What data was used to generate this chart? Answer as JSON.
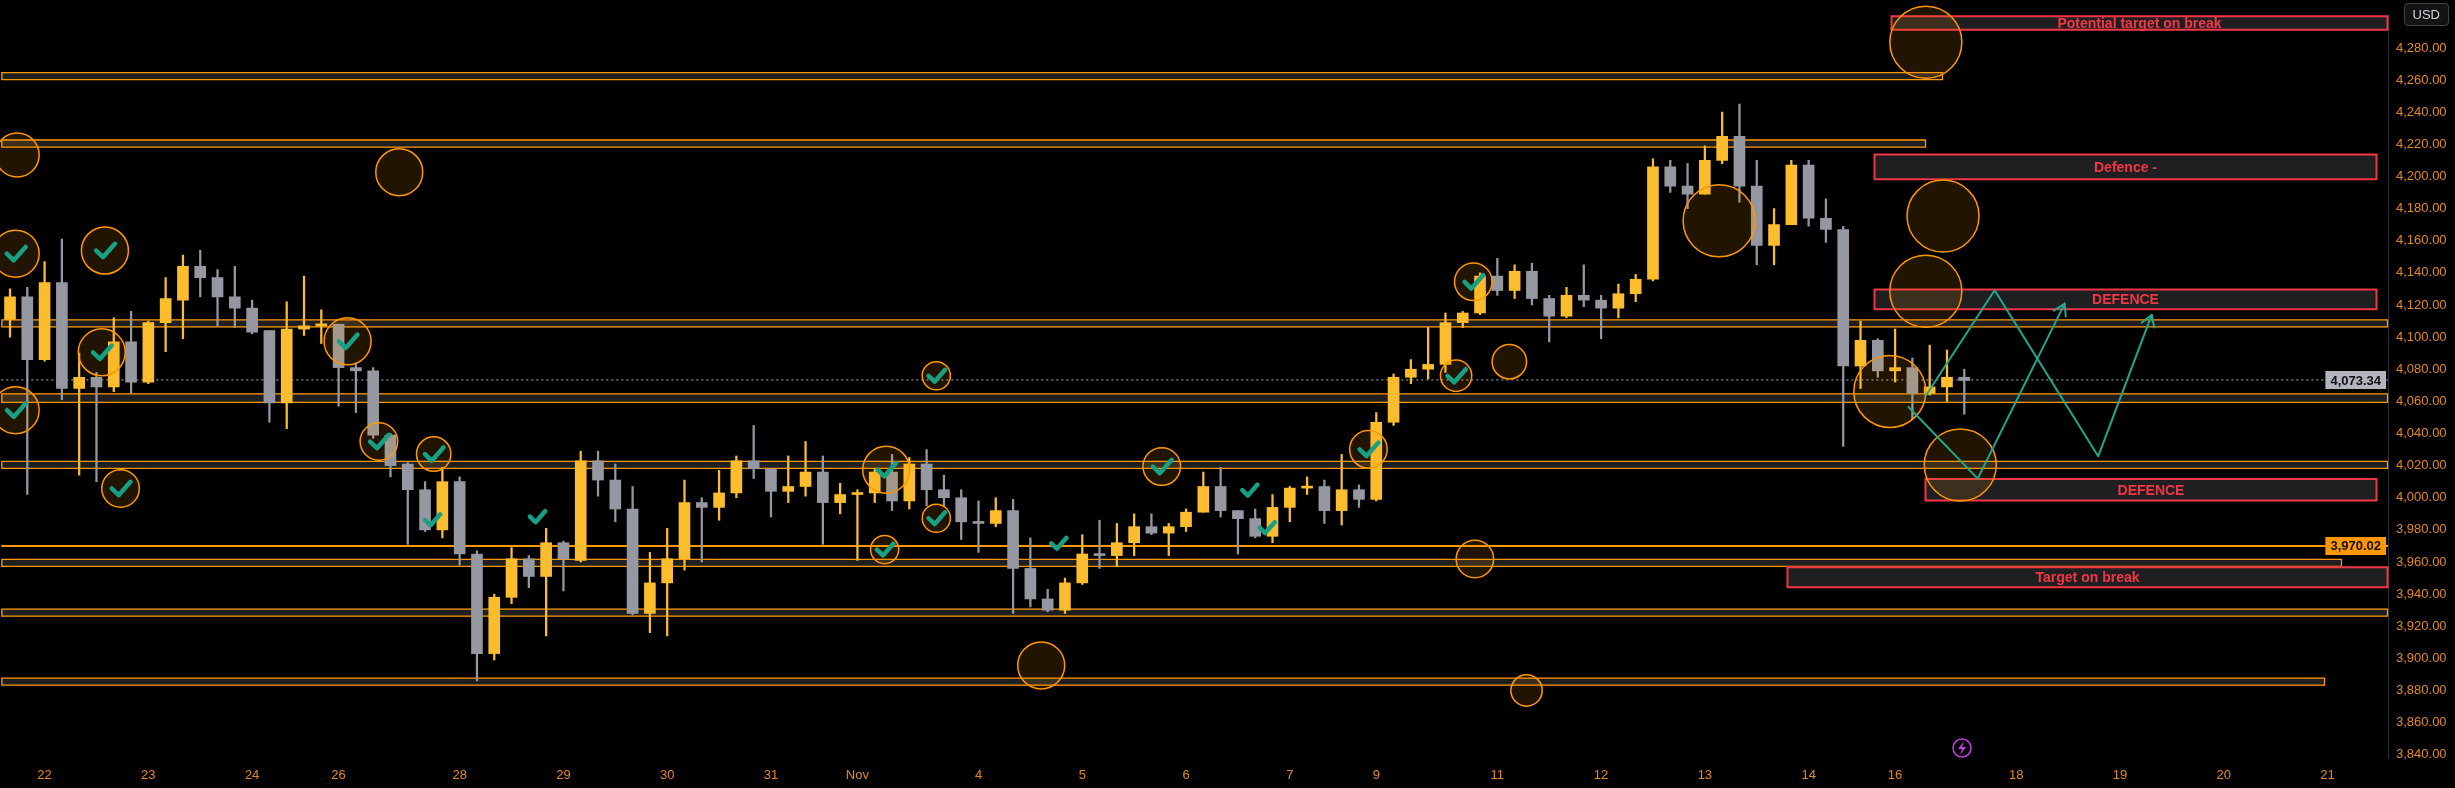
{
  "chart_data": {
    "type": "candlestick",
    "ylabel": "USD",
    "categories": [
      null,
      null,
      "22",
      null,
      null,
      null,
      null,
      null,
      "23",
      null,
      null,
      null,
      null,
      null,
      "24",
      null,
      null,
      null,
      null,
      "26",
      null,
      null,
      null,
      null,
      null,
      null,
      "28",
      null,
      null,
      null,
      null,
      null,
      "29",
      null,
      null,
      null,
      null,
      null,
      "30",
      null,
      null,
      null,
      null,
      null,
      "31",
      null,
      null,
      null,
      null,
      "Nov",
      null,
      null,
      null,
      null,
      null,
      null,
      "4",
      null,
      null,
      null,
      null,
      null,
      "5",
      null,
      null,
      null,
      null,
      null,
      "6",
      null,
      null,
      null,
      null,
      null,
      "7",
      null,
      null,
      null,
      null,
      "9",
      null,
      null,
      null,
      null,
      null,
      null,
      "11",
      null,
      null,
      null,
      null,
      null,
      "12",
      null,
      null,
      null,
      null,
      null,
      "13",
      null,
      null,
      null,
      null,
      null,
      "14",
      null,
      null,
      null,
      null,
      "16",
      null,
      null,
      null,
      null,
      null,
      null,
      "18",
      null,
      null,
      null,
      null,
      null,
      "19",
      null,
      null,
      null,
      null,
      null,
      "20",
      null,
      null,
      null,
      null,
      null,
      "21",
      null,
      null,
      null
    ],
    "ohlc": [
      [
        4111,
        4130,
        4100,
        4125
      ],
      [
        4125,
        4131,
        4002,
        4086
      ],
      [
        4086,
        4147,
        4085,
        4134
      ],
      [
        4134,
        4161,
        4061,
        4068
      ],
      [
        4068,
        4090,
        4014,
        4075
      ],
      [
        4075,
        4078,
        4010,
        4069
      ],
      [
        4069,
        4112,
        4066,
        4097
      ],
      [
        4097,
        4116,
        4065,
        4072
      ],
      [
        4072,
        4110,
        4071,
        4109
      ],
      [
        4109,
        4137,
        4091,
        4124
      ],
      [
        4123,
        4151,
        4099,
        4144
      ],
      [
        4144,
        4154,
        4125,
        4137
      ],
      [
        4137,
        4142,
        4107,
        4125
      ],
      [
        4125,
        4144,
        4106,
        4118
      ],
      [
        4118,
        4123,
        4102,
        4103
      ],
      [
        4104,
        4104,
        4047,
        4059
      ],
      [
        4059,
        4122,
        4043,
        4105
      ],
      [
        4105,
        4138,
        4101,
        4107
      ],
      [
        4107,
        4117,
        4096,
        4108
      ],
      [
        4108,
        4108,
        4057,
        4081
      ],
      [
        4081,
        4083,
        4053,
        4079
      ],
      [
        4079,
        4081,
        4037,
        4039
      ],
      [
        4039,
        4040,
        4013,
        4020
      ],
      [
        4021,
        4022,
        3971,
        4005
      ],
      [
        4005,
        4010,
        3979,
        3980
      ],
      [
        3980,
        4019,
        3975,
        4010
      ],
      [
        4010,
        4013,
        3958,
        3965
      ],
      [
        3965,
        3967,
        3886,
        3903
      ],
      [
        3903,
        3940,
        3899,
        3938
      ],
      [
        3938,
        3969,
        3934,
        3962
      ],
      [
        3962,
        3964,
        3944,
        3951
      ],
      [
        3951,
        3981,
        3914,
        3972
      ],
      [
        3972,
        3973,
        3942,
        3962
      ],
      [
        3961,
        4029,
        3960,
        4023
      ],
      [
        4023,
        4029,
        4001,
        4011
      ],
      [
        4011,
        4021,
        3985,
        3993
      ],
      [
        3993,
        4007,
        3927,
        3928
      ],
      [
        3928,
        3966,
        3916,
        3947
      ],
      [
        3947,
        3981,
        3914,
        3962
      ],
      [
        3962,
        4011,
        3955,
        3997
      ],
      [
        3997,
        4000,
        3960,
        3994
      ],
      [
        3994,
        4017,
        3986,
        4003
      ],
      [
        4003,
        4026,
        4000,
        4023
      ],
      [
        4023,
        4045,
        4012,
        4018
      ],
      [
        4018,
        4018,
        3988,
        4004
      ],
      [
        4004,
        4026,
        3997,
        4007
      ],
      [
        4007,
        4035,
        4001,
        4016
      ],
      [
        4016,
        4026,
        3971,
        3997
      ],
      [
        3997,
        4009,
        3990,
        4002
      ],
      [
        4002,
        4005,
        3961,
        4003
      ],
      [
        4003,
        4018,
        3997,
        4016
      ],
      [
        4016,
        4027,
        3992,
        3998
      ],
      [
        3998,
        4025,
        3993,
        4021
      ],
      [
        4021,
        4030,
        3995,
        4005
      ],
      [
        4005,
        4014,
        3995,
        4000
      ],
      [
        4000,
        4005,
        3974,
        3985
      ],
      [
        3985,
        3998,
        3966,
        3984
      ],
      [
        3984,
        4000,
        3982,
        3992
      ],
      [
        3992,
        3999,
        3928,
        3956
      ],
      [
        3956,
        3975,
        3932,
        3937
      ],
      [
        3937,
        3943,
        3929,
        3930
      ],
      [
        3930,
        3950,
        3928,
        3947
      ],
      [
        3947,
        3977,
        3946,
        3965
      ],
      [
        3965,
        3986,
        3956,
        3964
      ],
      [
        3964,
        3984,
        3957,
        3972
      ],
      [
        3972,
        3990,
        3964,
        3982
      ],
      [
        3982,
        3990,
        3977,
        3978
      ],
      [
        3978,
        3984,
        3964,
        3982
      ],
      [
        3982,
        3993,
        3979,
        3991
      ],
      [
        3991,
        4016,
        3991,
        4007
      ],
      [
        4007,
        4019,
        3988,
        3992
      ],
      [
        3992,
        3992,
        3965,
        3987
      ],
      [
        3987,
        3993,
        3975,
        3976
      ],
      [
        3976,
        4002,
        3972,
        3994
      ],
      [
        3994,
        4007,
        3985,
        4006
      ],
      [
        4006,
        4013,
        4002,
        4007
      ],
      [
        4007,
        4011,
        3984,
        3992
      ],
      [
        3992,
        4027,
        3983,
        4005
      ],
      [
        4005,
        4008,
        3994,
        3999
      ],
      [
        3999,
        4053,
        3998,
        4047
      ],
      [
        4047,
        4077,
        4045,
        4075
      ],
      [
        4075,
        4086,
        4071,
        4080
      ],
      [
        4080,
        4106,
        4074,
        4083
      ],
      [
        4083,
        4115,
        4078,
        4109
      ],
      [
        4109,
        4116,
        4106,
        4115
      ],
      [
        4115,
        4140,
        4114,
        4138
      ],
      [
        4138,
        4149,
        4126,
        4129
      ],
      [
        4129,
        4145,
        4124,
        4141
      ],
      [
        4141,
        4146,
        4120,
        4124
      ],
      [
        4124,
        4126,
        4097,
        4113
      ],
      [
        4113,
        4131,
        4112,
        4126
      ],
      [
        4126,
        4145,
        4119,
        4123
      ],
      [
        4123,
        4126,
        4099,
        4118
      ],
      [
        4118,
        4133,
        4112,
        4127
      ],
      [
        4127,
        4139,
        4122,
        4136
      ],
      [
        4136,
        4211,
        4135,
        4206
      ],
      [
        4206,
        4210,
        4190,
        4194
      ],
      [
        4194,
        4208,
        4180,
        4189
      ],
      [
        4189,
        4219,
        4189,
        4210
      ],
      [
        4210,
        4240,
        4208,
        4225
      ],
      [
        4225,
        4245,
        4184,
        4194
      ],
      [
        4194,
        4210,
        4145,
        4157
      ],
      [
        4157,
        4180,
        4145,
        4170
      ],
      [
        4170,
        4210,
        4170,
        4207
      ],
      [
        4207,
        4210,
        4169,
        4174
      ],
      [
        4174,
        4186,
        4159,
        4167
      ],
      [
        4167,
        4169,
        4032,
        4082
      ],
      [
        4082,
        4110,
        4068,
        4098
      ],
      [
        4098,
        4099,
        4075,
        4079
      ],
      [
        4079,
        4105,
        4072,
        4081
      ],
      [
        4081,
        4087,
        4049,
        4065
      ],
      [
        4065,
        4095,
        4064,
        4069
      ],
      [
        4069,
        4092,
        4060,
        4075
      ],
      [
        4075,
        4080,
        4052,
        4073
      ],
      null,
      null,
      null,
      null,
      null,
      null,
      null,
      null,
      null,
      null,
      null,
      null,
      null,
      null,
      null,
      null,
      null,
      null,
      null,
      null,
      null,
      null,
      null,
      null
    ],
    "colors": [
      "#fbbd2e",
      "#9598a1",
      "#fbbd2e",
      "#9598a1",
      "#fbbd2e",
      "#9598a1",
      "#fbbd2e",
      "#9598a1",
      "#fbbd2e",
      "#fbbd2e",
      "#fbbd2e",
      "#9598a1",
      "#9598a1",
      "#9598a1",
      "#9598a1",
      "#9598a1",
      "#fbbd2e",
      "#fbbd2e",
      "#fbbd2e",
      "#9598a1",
      "#9598a1",
      "#9598a1",
      "#9598a1",
      "#9598a1",
      "#9598a1",
      "#fbbd2e",
      "#9598a1",
      "#9598a1",
      "#fbbd2e",
      "#fbbd2e",
      "#9598a1",
      "#fbbd2e",
      "#9598a1",
      "#fbbd2e",
      "#9598a1",
      "#9598a1",
      "#9598a1",
      "#fbbd2e",
      "#fbbd2e",
      "#fbbd2e",
      "#9598a1",
      "#fbbd2e",
      "#fbbd2e",
      "#9598a1",
      "#9598a1",
      "#fbbd2e",
      "#fbbd2e",
      "#9598a1",
      "#fbbd2e",
      "#fbbd2e",
      "#fbbd2e",
      "#9598a1",
      "#fbbd2e",
      "#9598a1",
      "#9598a1",
      "#9598a1",
      "#9598a1",
      "#fbbd2e",
      "#9598a1",
      "#9598a1",
      "#9598a1",
      "#fbbd2e",
      "#fbbd2e",
      "#9598a1",
      "#fbbd2e",
      "#fbbd2e",
      "#9598a1",
      "#fbbd2e",
      "#fbbd2e",
      "#fbbd2e",
      "#9598a1",
      "#9598a1",
      "#9598a1",
      "#fbbd2e",
      "#fbbd2e",
      "#fbbd2e",
      "#9598a1",
      "#fbbd2e",
      "#9598a1",
      "#fbbd2e",
      "#fbbd2e",
      "#fbbd2e",
      "#fbbd2e",
      "#fbbd2e",
      "#fbbd2e",
      "#fbbd2e",
      "#9598a1",
      "#fbbd2e",
      "#9598a1",
      "#9598a1",
      "#fbbd2e",
      "#9598a1",
      "#9598a1",
      "#fbbd2e",
      "#fbbd2e",
      "#fbbd2e",
      "#9598a1",
      "#9598a1",
      "#fbbd2e",
      "#fbbd2e",
      "#9598a1",
      "#9598a1",
      "#fbbd2e",
      "#fbbd2e",
      "#9598a1",
      "#9598a1",
      "#9598a1",
      "#fbbd2e",
      "#9598a1",
      "#fbbd2e",
      "#9598a1",
      "#fbbd2e",
      "#fbbd2e",
      "#9598a1",
      null,
      null,
      null,
      null,
      null,
      null,
      null,
      null,
      null,
      null,
      null,
      null,
      null,
      null,
      null,
      null,
      null,
      null,
      null,
      null,
      null,
      null,
      null,
      null
    ],
    "ylim": [
      3838,
      4300
    ],
    "yticks": [
      {
        "value": 3840,
        "label": "3,840.00"
      },
      {
        "value": 3860,
        "label": "3,860.00"
      },
      {
        "value": 3880,
        "label": "3,880.00"
      },
      {
        "value": 3900,
        "label": "3,900.00"
      },
      {
        "value": 3920,
        "label": "3,920.00"
      },
      {
        "value": 3940,
        "label": "3,940.00"
      },
      {
        "value": 3960,
        "label": "3,960.00"
      },
      {
        "value": 3980,
        "label": "3,980.00"
      },
      {
        "value": 4000,
        "label": "4,000.00"
      },
      {
        "value": 4020,
        "label": "4,020.00"
      },
      {
        "value": 4040,
        "label": "4,040.00"
      },
      {
        "value": 4060,
        "label": "4,060.00"
      },
      {
        "value": 4080,
        "label": "4,080.00"
      },
      {
        "value": 4100,
        "label": "4,100.00"
      },
      {
        "value": 4120,
        "label": "4,120.00"
      },
      {
        "value": 4140,
        "label": "4,140.00"
      },
      {
        "value": 4160,
        "label": "4,160.00"
      },
      {
        "value": 4180,
        "label": "4,180.00"
      },
      {
        "value": 4200,
        "label": "4,200.00"
      },
      {
        "value": 4220,
        "label": "4,220.00"
      },
      {
        "value": 4240,
        "label": "4,240.00"
      },
      {
        "value": 4260,
        "label": "4,260.00"
      },
      {
        "value": 4280,
        "label": "4,280.00"
      }
    ],
    "bands": [
      {
        "axis": "y",
        "from": 4260,
        "to": 4265,
        "color": "#1f1f22"
      },
      {
        "axis": "y",
        "from": 4218,
        "to": 4223,
        "color": "#1f1f22"
      },
      {
        "axis": "y",
        "from": 4106,
        "to": 4111,
        "color": "#1f1f22"
      },
      {
        "axis": "y",
        "from": 4059,
        "to": 4065,
        "color": "#1f1f22"
      },
      {
        "axis": "y",
        "from": 4018,
        "to": 4023,
        "color": "#1f1f22"
      },
      {
        "axis": "y",
        "from": 3957,
        "to": 3962,
        "color": "#1f1f22"
      },
      {
        "axis": "y",
        "from": 3926,
        "to": 3931,
        "color": "#1f1f22"
      },
      {
        "axis": "y",
        "from": 3883,
        "to": 3888,
        "color": "#1f1f22"
      },
      {
        "axis": "y",
        "from": 4291,
        "to": 4300,
        "label": "Potential target on break",
        "color": "#1f1f22"
      },
      {
        "axis": "y",
        "from": 4198,
        "to": 4214,
        "label": "Defence -",
        "color": "#1f1f22"
      },
      {
        "axis": "y",
        "from": 4117,
        "to": 4130,
        "label": "DEFENCE",
        "color": "#1f1f22"
      },
      {
        "axis": "y",
        "from": 3998,
        "to": 4012,
        "label": "DEFENCE",
        "color": "#1f1f22"
      },
      {
        "axis": "y",
        "from": 3944,
        "to": 3957,
        "label": "Target on break",
        "color": "#1f1f22"
      }
    ],
    "ref_lines": [
      {
        "axis": "y",
        "value": 4073.34,
        "label": "4,073.34",
        "color": "#b2b5be",
        "line_style": "dotted"
      },
      {
        "axis": "y",
        "value": 3970.02,
        "label": "3,970.02",
        "color": "#ff9800"
      }
    ]
  }
}
